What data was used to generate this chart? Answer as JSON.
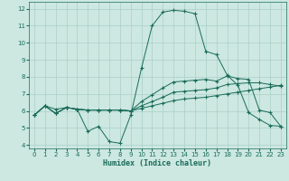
{
  "xlabel": "Humidex (Indice chaleur)",
  "xlim": [
    -0.5,
    23.5
  ],
  "ylim": [
    3.8,
    12.4
  ],
  "xticks": [
    0,
    1,
    2,
    3,
    4,
    5,
    6,
    7,
    8,
    9,
    10,
    11,
    12,
    13,
    14,
    15,
    16,
    17,
    18,
    19,
    20,
    21,
    22,
    23
  ],
  "yticks": [
    4,
    5,
    6,
    7,
    8,
    9,
    10,
    11,
    12
  ],
  "bg_color": "#cce8e0",
  "grid_color": "#aacfc8",
  "line_color": "#1a6b5a",
  "lines": [
    {
      "x": [
        0,
        1,
        2,
        3,
        4,
        5,
        6,
        7,
        8,
        9,
        10,
        11,
        12,
        13,
        14,
        15,
        16,
        17,
        18,
        19,
        20,
        21,
        22,
        23
      ],
      "y": [
        5.75,
        6.3,
        6.1,
        6.2,
        6.1,
        4.8,
        5.1,
        4.2,
        4.1,
        5.75,
        8.5,
        11.0,
        11.8,
        11.9,
        11.85,
        11.7,
        9.5,
        9.3,
        8.1,
        7.5,
        5.9,
        5.5,
        5.15,
        5.1
      ]
    },
    {
      "x": [
        0,
        1,
        2,
        3,
        4,
        5,
        6,
        7,
        8,
        9,
        10,
        11,
        12,
        13,
        14,
        15,
        16,
        17,
        18,
        19,
        20,
        21,
        22,
        23
      ],
      "y": [
        5.75,
        6.3,
        5.85,
        6.2,
        6.1,
        6.05,
        6.05,
        6.05,
        6.05,
        6.0,
        6.55,
        6.95,
        7.35,
        7.7,
        7.75,
        7.8,
        7.85,
        7.75,
        8.05,
        7.9,
        7.85,
        6.05,
        5.9,
        5.1
      ]
    },
    {
      "x": [
        0,
        1,
        2,
        3,
        4,
        5,
        6,
        7,
        8,
        9,
        10,
        11,
        12,
        13,
        14,
        15,
        16,
        17,
        18,
        19,
        20,
        21,
        22,
        23
      ],
      "y": [
        5.75,
        6.3,
        5.85,
        6.2,
        6.1,
        6.05,
        6.05,
        6.05,
        6.05,
        6.0,
        6.3,
        6.55,
        6.8,
        7.1,
        7.15,
        7.2,
        7.25,
        7.35,
        7.55,
        7.6,
        7.65,
        7.65,
        7.55,
        7.45
      ]
    },
    {
      "x": [
        0,
        1,
        2,
        3,
        4,
        5,
        6,
        7,
        8,
        9,
        10,
        11,
        12,
        13,
        14,
        15,
        16,
        17,
        18,
        19,
        20,
        21,
        22,
        23
      ],
      "y": [
        5.75,
        6.3,
        5.85,
        6.2,
        6.1,
        6.05,
        6.05,
        6.05,
        6.05,
        6.0,
        6.15,
        6.3,
        6.45,
        6.6,
        6.7,
        6.75,
        6.8,
        6.9,
        7.0,
        7.1,
        7.2,
        7.3,
        7.4,
        7.5
      ]
    }
  ]
}
